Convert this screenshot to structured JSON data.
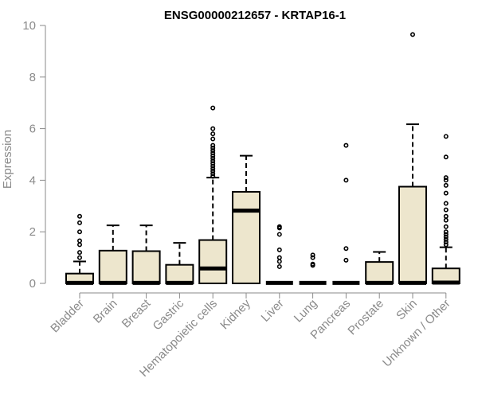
{
  "chart_data": {
    "type": "box",
    "title": "ENSG00000212657 - KRTAP16-1",
    "ylabel": "Expression",
    "xlabel": "",
    "ylim": [
      0,
      10
    ],
    "yticks": [
      0,
      2,
      4,
      6,
      8,
      10
    ],
    "grid": false,
    "colors": {
      "box_fill": "#ede6cd",
      "box_stroke": "#000000",
      "axis": "#8a8a8a"
    },
    "categories": [
      "Bladder",
      "Brain",
      "Breast",
      "Gastric",
      "Hematopoietic cells",
      "Kidney",
      "Liver",
      "Lung",
      "Pancreas",
      "Prostate",
      "Skin",
      "Unknown / Other"
    ],
    "boxes": [
      {
        "q1": 0,
        "median": 0.02,
        "q3": 0.38,
        "whisker_low": 0,
        "whisker_high": 0.85,
        "outliers": [
          1.0,
          1.2,
          1.5,
          1.65,
          2.0,
          2.35,
          2.6
        ]
      },
      {
        "q1": 0,
        "median": 0.02,
        "q3": 1.27,
        "whisker_low": 0,
        "whisker_high": 2.25,
        "outliers": []
      },
      {
        "q1": 0,
        "median": 0.02,
        "q3": 1.25,
        "whisker_low": 0,
        "whisker_high": 2.25,
        "outliers": []
      },
      {
        "q1": 0,
        "median": 0.02,
        "q3": 0.72,
        "whisker_low": 0,
        "whisker_high": 1.57,
        "outliers": []
      },
      {
        "q1": 0,
        "median": 0.58,
        "q3": 1.68,
        "whisker_low": 0,
        "whisker_high": 4.1,
        "outliers": [
          4.15,
          4.25,
          4.35,
          4.45,
          4.55,
          4.65,
          4.75,
          4.85,
          4.95,
          5.05,
          5.15,
          5.25,
          5.35,
          5.6,
          5.8,
          6.0,
          6.8
        ]
      },
      {
        "q1": 0,
        "median": 2.82,
        "q3": 3.55,
        "whisker_low": 0,
        "whisker_high": 4.95,
        "outliers": []
      },
      {
        "q1": 0,
        "median": 0.02,
        "q3": 0.02,
        "whisker_low": 0,
        "whisker_high": 0.02,
        "outliers": [
          0.65,
          0.85,
          1.0,
          1.3,
          1.9,
          2.15,
          2.2
        ]
      },
      {
        "q1": 0,
        "median": 0.02,
        "q3": 0.02,
        "whisker_low": 0,
        "whisker_high": 0.02,
        "outliers": [
          0.7,
          0.75,
          1.0,
          1.1
        ]
      },
      {
        "q1": 0,
        "median": 0.02,
        "q3": 0.02,
        "whisker_low": 0,
        "whisker_high": 0.02,
        "outliers": [
          0.9,
          1.35,
          4.0,
          5.35
        ]
      },
      {
        "q1": 0,
        "median": 0.02,
        "q3": 0.83,
        "whisker_low": 0,
        "whisker_high": 1.22,
        "outliers": []
      },
      {
        "q1": 0,
        "median": 0.02,
        "q3": 3.75,
        "whisker_low": 0,
        "whisker_high": 6.17,
        "outliers": [
          9.65
        ]
      },
      {
        "q1": 0,
        "median": 0.03,
        "q3": 0.58,
        "whisker_low": 0,
        "whisker_high": 1.4,
        "outliers": [
          1.5,
          1.6,
          1.7,
          1.8,
          1.9,
          2.0,
          2.2,
          2.45,
          2.6,
          2.85,
          3.1,
          3.5,
          3.8,
          4.0,
          4.1,
          4.9,
          5.7
        ]
      }
    ]
  }
}
